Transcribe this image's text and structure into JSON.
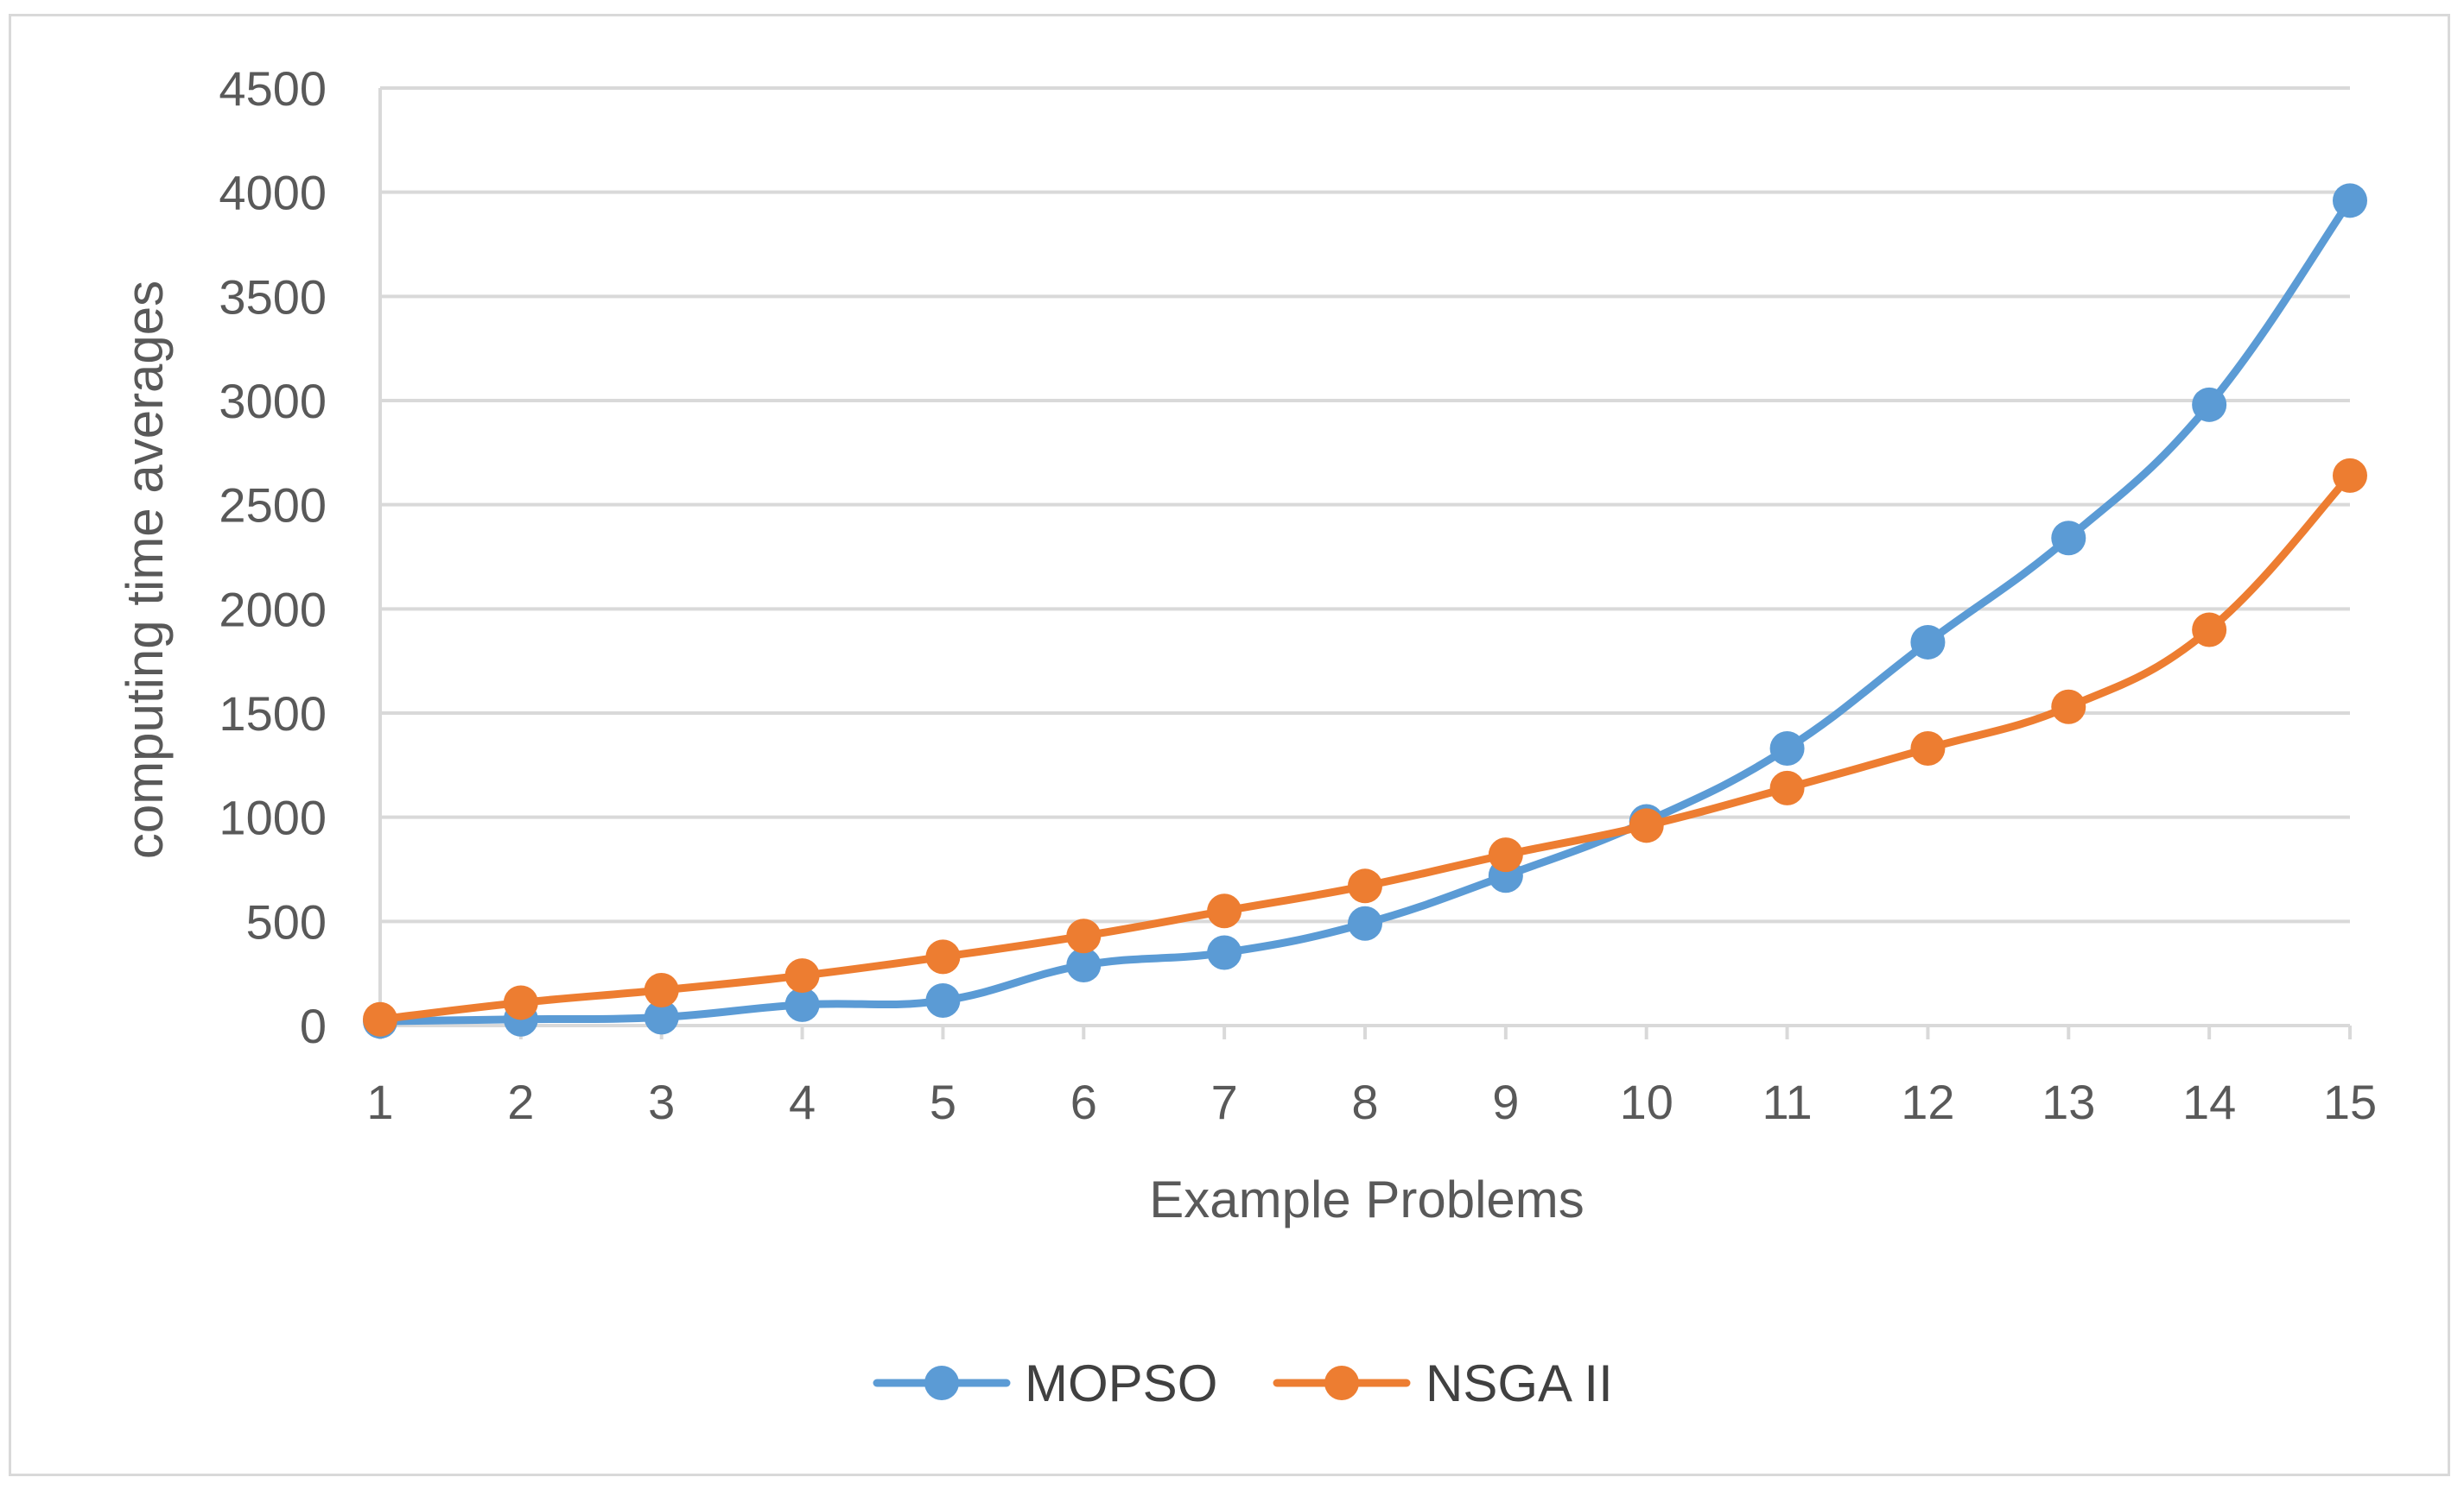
{
  "chart_data": {
    "type": "line",
    "title": "",
    "xlabel": "Example Problems",
    "ylabel": "computing time averages",
    "categories": [
      "1",
      "2",
      "3",
      "4",
      "5",
      "6",
      "7",
      "8",
      "9",
      "10",
      "11",
      "12",
      "13",
      "14",
      "15"
    ],
    "ylim": [
      0,
      4500
    ],
    "yticks": [
      0,
      500,
      1000,
      1500,
      2000,
      2500,
      3000,
      3500,
      4000,
      4500
    ],
    "grid": true,
    "legend_position": "bottom",
    "series": [
      {
        "name": "MOPSO",
        "color": "#5b9bd5",
        "values": [
          20,
          30,
          40,
          100,
          120,
          290,
          350,
          490,
          720,
          980,
          1330,
          1840,
          2340,
          2980,
          3960
        ]
      },
      {
        "name": "NSGA II",
        "color": "#ed7d31",
        "values": [
          30,
          110,
          170,
          240,
          330,
          430,
          550,
          670,
          820,
          960,
          1140,
          1330,
          1530,
          1900,
          2640
        ]
      }
    ]
  }
}
